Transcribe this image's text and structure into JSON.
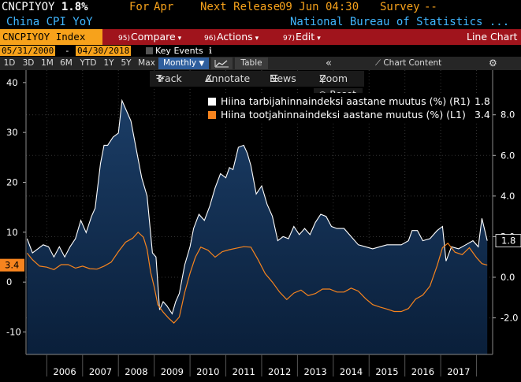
{
  "header": {
    "ticker": "CNCPIYOY",
    "value": "1.8%",
    "for_label": "For",
    "for_value": "Apr",
    "next_release_label": "Next Release",
    "next_release_value": "09 Jun 04:30",
    "survey_label": "Survey",
    "survey_value": "--",
    "name": "China CPI YoY",
    "source": "National Bureau of Statistics ..."
  },
  "toolbar": {
    "index": "CNCPIYOY Index",
    "compare_num": "95)",
    "compare": "Compare",
    "actions_num": "96)",
    "actions": "Actions",
    "edit_num": "97)",
    "edit": "Edit",
    "chart_type": "Line Chart"
  },
  "range": {
    "start": "05/31/2000",
    "dash": "-",
    "end": "04/30/2018",
    "key_events": "Key Events"
  },
  "periods": [
    "1D",
    "3D",
    "1M",
    "6M",
    "YTD",
    "1Y",
    "5Y",
    "Max"
  ],
  "frequency": "Monthly",
  "table_label": "Table",
  "chart_content_label": "Chart Content",
  "chart_tools": {
    "track": "Track",
    "annotate": "Annotate",
    "news": "News",
    "zoom": "Zoom",
    "reset": "Reset"
  },
  "colors": {
    "cpi_line": "#ffffff",
    "cpi_fill": "#12345a",
    "ppi_line": "#f7841e",
    "accent_orange": "#f7a21b",
    "toolbar_red": "#a0141c"
  },
  "chart_data": {
    "type": "line",
    "x_labels": [
      "2006",
      "2007",
      "2008",
      "2009",
      "2010",
      "2011",
      "2012",
      "2013",
      "2014",
      "2015",
      "2016",
      "2017"
    ],
    "left_axis": {
      "ticks": [
        -10,
        0,
        10,
        20,
        30,
        40
      ],
      "range": [
        -14.5,
        42.5
      ]
    },
    "right_axis": {
      "ticks": [
        "-2.0",
        "0.0",
        "2.0",
        "4.0",
        "6.0",
        "8.0"
      ],
      "range": [
        -3.8,
        10.2
      ]
    },
    "series": [
      {
        "name": "Hiina tarbijahinnaindeksi aastane muutus (%) (R1)",
        "last": "1.8",
        "axis": "right",
        "style": "area",
        "x": [
          2005.45,
          2005.6,
          2005.75,
          2005.9,
          2006.05,
          2006.2,
          2006.35,
          2006.5,
          2006.65,
          2006.8,
          2006.95,
          2007.1,
          2007.25,
          2007.35,
          2007.5,
          2007.6,
          2007.7,
          2007.85,
          2008.0,
          2008.1,
          2008.2,
          2008.35,
          2008.5,
          2008.65,
          2008.8,
          2008.95,
          2009.05,
          2009.15,
          2009.25,
          2009.35,
          2009.5,
          2009.6,
          2009.7,
          2009.85,
          2010.0,
          2010.1,
          2010.25,
          2010.4,
          2010.55,
          2010.7,
          2010.85,
          2011.0,
          2011.1,
          2011.2,
          2011.35,
          2011.5,
          2011.6,
          2011.7,
          2011.85,
          2012.0,
          2012.15,
          2012.3,
          2012.45,
          2012.6,
          2012.75,
          2012.9,
          2013.05,
          2013.2,
          2013.35,
          2013.5,
          2013.65,
          2013.8,
          2013.95,
          2014.1,
          2014.3,
          2014.5,
          2014.7,
          2014.9,
          2015.1,
          2015.3,
          2015.5,
          2015.7,
          2015.9,
          2016.1,
          2016.2,
          2016.35,
          2016.5,
          2016.7,
          2016.9,
          2017.05,
          2017.15,
          2017.3,
          2017.5,
          2017.7,
          2017.9,
          2018.05,
          2018.15,
          2018.3
        ],
        "values": [
          1.9,
          1.2,
          1.4,
          1.6,
          1.5,
          1.0,
          1.5,
          1.0,
          1.5,
          1.9,
          2.8,
          2.2,
          3.0,
          3.4,
          5.6,
          6.5,
          6.5,
          6.9,
          7.1,
          8.7,
          8.3,
          7.7,
          6.3,
          4.9,
          4.0,
          1.2,
          1.0,
          -1.6,
          -1.2,
          -1.4,
          -1.8,
          -1.2,
          -0.8,
          0.6,
          1.5,
          2.4,
          3.1,
          2.8,
          3.5,
          4.4,
          5.1,
          4.9,
          5.4,
          5.3,
          6.4,
          6.5,
          6.1,
          5.5,
          4.1,
          4.5,
          3.6,
          3.0,
          1.8,
          2.0,
          1.9,
          2.5,
          2.1,
          2.4,
          2.1,
          2.7,
          3.1,
          3.0,
          2.5,
          2.4,
          2.4,
          2.0,
          1.6,
          1.5,
          1.4,
          1.5,
          1.6,
          1.6,
          1.6,
          1.8,
          2.3,
          2.3,
          1.8,
          1.9,
          2.3,
          2.5,
          0.8,
          1.5,
          1.4,
          1.6,
          1.8,
          1.5,
          2.9,
          1.8
        ]
      },
      {
        "name": "Hiina tootjahinnaindeksi aastane muutus (%) (L1)",
        "last": "3.4",
        "axis": "left",
        "style": "line",
        "x": [
          2005.45,
          2005.6,
          2005.8,
          2006.0,
          2006.2,
          2006.4,
          2006.6,
          2006.8,
          2007.0,
          2007.2,
          2007.4,
          2007.6,
          2007.8,
          2008.0,
          2008.2,
          2008.4,
          2008.55,
          2008.7,
          2008.8,
          2008.9,
          2009.0,
          2009.1,
          2009.25,
          2009.4,
          2009.55,
          2009.7,
          2009.85,
          2010.0,
          2010.15,
          2010.3,
          2010.5,
          2010.7,
          2010.9,
          2011.1,
          2011.3,
          2011.5,
          2011.7,
          2011.9,
          2012.1,
          2012.3,
          2012.5,
          2012.7,
          2012.9,
          2013.1,
          2013.3,
          2013.5,
          2013.7,
          2013.9,
          2014.1,
          2014.3,
          2014.5,
          2014.7,
          2014.9,
          2015.1,
          2015.3,
          2015.5,
          2015.7,
          2015.9,
          2016.1,
          2016.3,
          2016.5,
          2016.7,
          2016.9,
          2017.05,
          2017.2,
          2017.4,
          2017.6,
          2017.8,
          2018.0,
          2018.15,
          2018.3
        ],
        "values": [
          5.8,
          4.5,
          3.2,
          3.0,
          2.5,
          3.5,
          3.5,
          2.8,
          3.2,
          2.7,
          2.6,
          3.2,
          4.0,
          6.1,
          8.0,
          8.8,
          10.0,
          9.0,
          6.6,
          2.0,
          -1.0,
          -4.5,
          -6.0,
          -7.2,
          -8.2,
          -7.0,
          -2.1,
          1.8,
          5.0,
          7.0,
          6.4,
          5.0,
          6.1,
          6.5,
          6.8,
          7.1,
          7.0,
          4.5,
          1.7,
          0.0,
          -2.0,
          -3.5,
          -2.2,
          -1.6,
          -2.7,
          -2.3,
          -1.4,
          -1.4,
          -2.0,
          -2.0,
          -1.2,
          -1.8,
          -3.3,
          -4.5,
          -5.0,
          -5.4,
          -5.9,
          -5.9,
          -5.3,
          -3.4,
          -2.6,
          -0.8,
          3.3,
          6.9,
          7.8,
          6.0,
          5.5,
          6.9,
          4.9,
          3.7,
          3.4
        ]
      }
    ]
  }
}
